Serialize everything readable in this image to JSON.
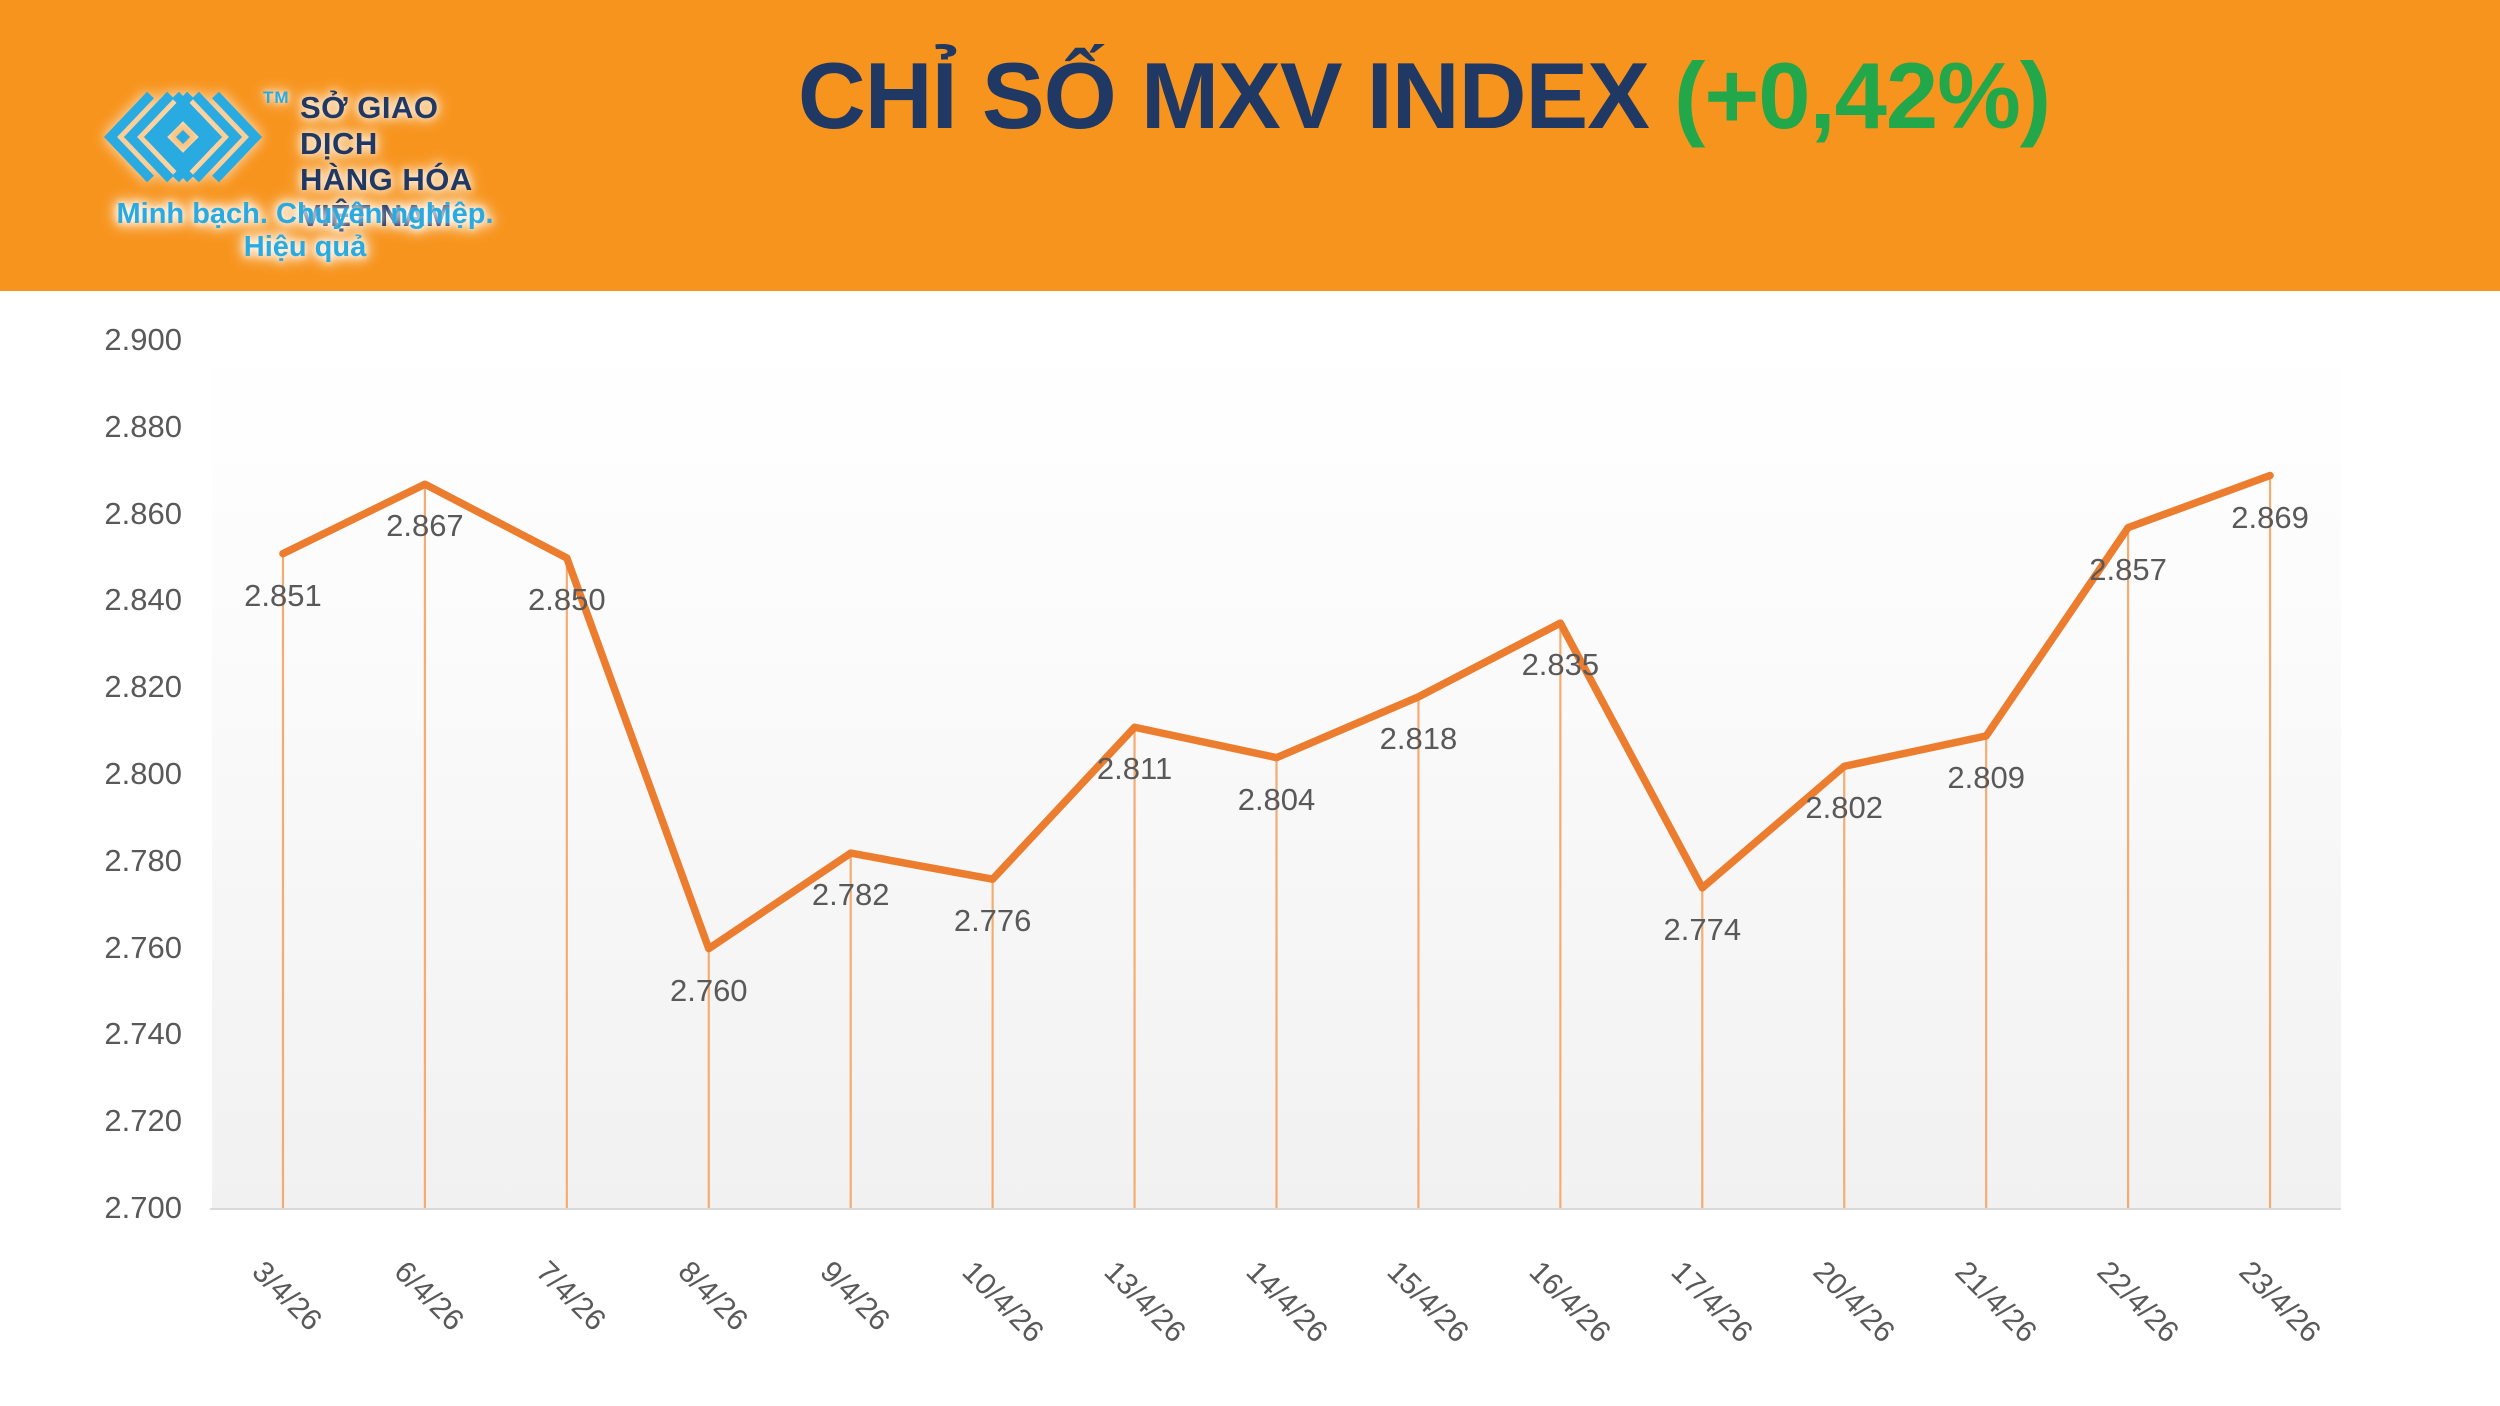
{
  "colors": {
    "header_bg": "#F7941D",
    "title_navy": "#1F3864",
    "change_green": "#22A74A",
    "logo_cyan": "#29ABE2",
    "logo_navy": "#203864",
    "label_gray": "#595959",
    "axis_line": "#D9D9D9"
  },
  "header": {
    "title": "CHỈ SỐ MXV INDEX",
    "change": "(+0,42%)",
    "logo": {
      "trademark": "TM",
      "org_lines": [
        "SỞ GIAO DỊCH",
        "HÀNG HÓA",
        "VIỆT NAM"
      ],
      "tagline": "Minh bạch. Chuyên nghiệp. Hiệu quả"
    }
  },
  "chart_data": {
    "type": "line",
    "title": "CHỈ SỐ MXV INDEX (+0,42%)",
    "categories": [
      "3/4/26",
      "6/4/26",
      "7/4/26",
      "8/4/26",
      "9/4/26",
      "10/4/26",
      "13/4/26",
      "14/4/26",
      "15/4/26",
      "16/4/26",
      "17/4/26",
      "20/4/26",
      "21/4/26",
      "22/4/26",
      "23/4/26"
    ],
    "values": [
      2.851,
      2.867,
      2.85,
      2.76,
      2.782,
      2.776,
      2.811,
      2.804,
      2.818,
      2.835,
      2.774,
      2.802,
      2.809,
      2.857,
      2.869
    ],
    "point_labels": [
      "2.851",
      "2.867",
      "2.850",
      "2.760",
      "2.782",
      "2.776",
      "2.811",
      "2.804",
      "2.818",
      "2.835",
      "2.774",
      "2.802",
      "2.809",
      "2.857",
      "2.869"
    ],
    "yticks": [
      "2.900",
      "2.880",
      "2.860",
      "2.840",
      "2.820",
      "2.800",
      "2.780",
      "2.760",
      "2.740",
      "2.720",
      "2.700"
    ],
    "ylim": [
      2.7,
      2.9
    ],
    "ytick_step": 0.02,
    "grid": false,
    "legend": false,
    "label_position": "below",
    "colors": {
      "line": "#EC7C2E",
      "dropline": "#F6AC71"
    }
  }
}
